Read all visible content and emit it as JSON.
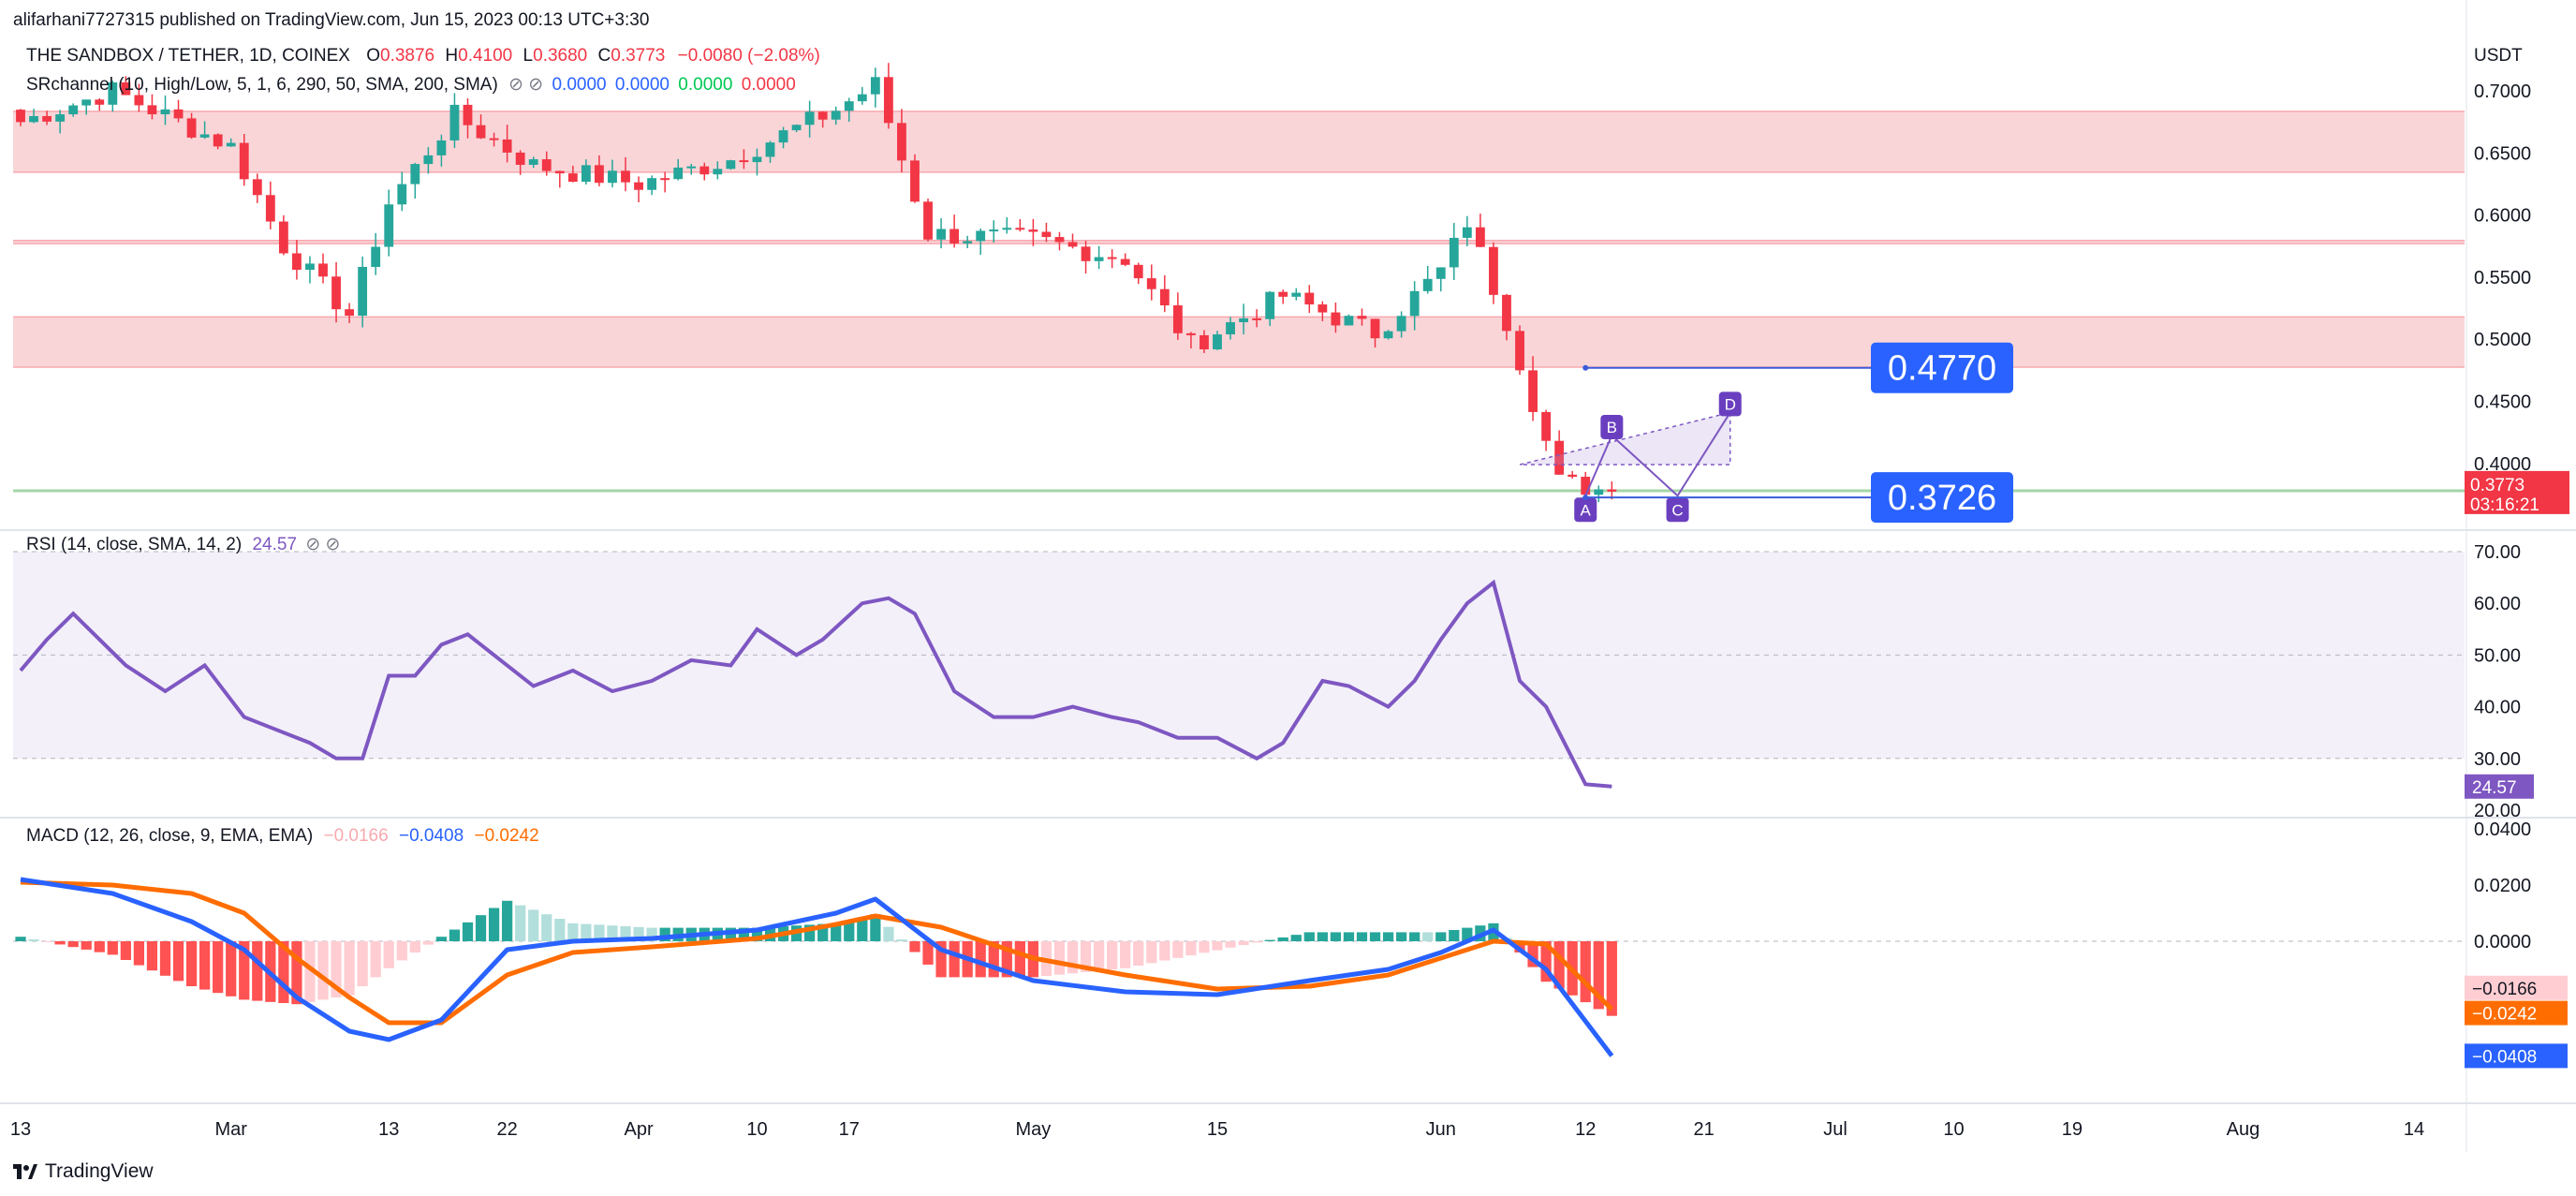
{
  "publisher_line": "alifarhani7727315 published on TradingView.com, Jun 15, 2023 00:13 UTC+3:30",
  "brand": "TradingView",
  "price_pane": {
    "symbol": "THE SANDBOX / TETHER, 1D, COINEX",
    "ohlc": {
      "o_label": "O",
      "o": "0.3876",
      "h_label": "H",
      "h": "0.4100",
      "l_label": "L",
      "l": "0.3680",
      "c_label": "C",
      "c": "0.3773",
      "change": "−0.0080 (−2.08%)"
    },
    "indicator": "SRchannel (10, High/Low, 5, 1, 6, 290, 50, SMA, 200, SMA)",
    "indicator_values": [
      "0.0000",
      "0.0000",
      "0.0000",
      "0.0000"
    ],
    "currency": "USDT",
    "last_price": "0.3773",
    "countdown": "03:16:21",
    "callout_high": "0.4770",
    "callout_low": "0.3726",
    "pattern_labels": [
      "A",
      "B",
      "C",
      "D"
    ]
  },
  "rsi_pane": {
    "label": "RSI (14, close, SMA, 14, 2)",
    "value": "24.57"
  },
  "macd_pane": {
    "label": "MACD (12, 26, close, 9, EMA, EMA)",
    "hist": "−0.0166",
    "macd": "−0.0408",
    "signal": "−0.0242"
  },
  "colors": {
    "up": "#26a69a",
    "down": "#f23645",
    "rsi": "#7e57c2",
    "macd": "#2962ff",
    "signal": "#ff6d00",
    "zone": "#f7c7cb",
    "callout": "#2962ff"
  },
  "chart_data": [
    {
      "type": "candlestick",
      "title": "THE SANDBOX / TETHER, 1D, COINEX",
      "ylabel": "USDT",
      "ylim": [
        0.36,
        0.72
      ],
      "y_ticks": [
        "0.7000",
        "0.6500",
        "0.6000",
        "0.5500",
        "0.5000",
        "0.4500",
        "0.4000"
      ],
      "x_ticks": [
        "13",
        "Mar",
        "13",
        "22",
        "Apr",
        "10",
        "17",
        "May",
        "15",
        "Jun",
        "12",
        "21",
        "Jul",
        "10",
        "19",
        "Aug",
        "14"
      ],
      "x_range": [
        "2023-02-13",
        "2023-08-20"
      ],
      "close_path": {
        "dates": [
          "2023-02-13",
          "2023-02-20",
          "2023-03-01",
          "2023-03-05",
          "2023-03-10",
          "2023-03-13",
          "2023-03-18",
          "2023-03-24",
          "2023-04-01",
          "2023-04-08",
          "2023-04-16",
          "2023-04-19",
          "2023-04-23",
          "2023-05-01",
          "2023-05-08",
          "2023-05-13",
          "2023-05-20",
          "2023-05-27",
          "2023-06-01",
          "2023-06-03",
          "2023-06-06",
          "2023-06-10",
          "2023-06-14"
        ],
        "values": [
          0.675,
          0.7,
          0.655,
          0.575,
          0.52,
          0.61,
          0.68,
          0.64,
          0.625,
          0.645,
          0.685,
          0.705,
          0.585,
          0.58,
          0.565,
          0.495,
          0.535,
          0.505,
          0.555,
          0.595,
          0.515,
          0.385,
          0.3773
        ]
      },
      "zones": [
        {
          "from": 0.6345,
          "to": 0.6835
        },
        {
          "from": 0.577,
          "to": 0.5795
        },
        {
          "from": 0.4775,
          "to": 0.518
        }
      ],
      "support_line": 0.378,
      "callouts": [
        {
          "label": "0.4770",
          "value": 0.477
        },
        {
          "label": "0.3726",
          "value": 0.3726
        }
      ],
      "pattern_points": {
        "A": [
          "2023-06-12",
          0.374
        ],
        "B": [
          "2023-06-14",
          0.4225
        ],
        "C": [
          "2023-06-19",
          0.374
        ],
        "D": [
          "2023-06-23",
          0.441
        ]
      }
    },
    {
      "type": "line",
      "title": "RSI (14, close, SMA, 14, 2)",
      "ylim": [
        20,
        70
      ],
      "y_ticks": [
        "70.00",
        "60.00",
        "50.00",
        "40.00",
        "30.00",
        "20.00"
      ],
      "x": [
        "2023-02-13",
        "2023-02-15",
        "2023-02-17",
        "2023-02-19",
        "2023-02-21",
        "2023-02-24",
        "2023-02-27",
        "2023-03-02",
        "2023-03-04",
        "2023-03-07",
        "2023-03-09",
        "2023-03-11",
        "2023-03-13",
        "2023-03-15",
        "2023-03-17",
        "2023-03-19",
        "2023-03-21",
        "2023-03-24",
        "2023-03-27",
        "2023-03-30",
        "2023-04-02",
        "2023-04-05",
        "2023-04-08",
        "2023-04-10",
        "2023-04-13",
        "2023-04-15",
        "2023-04-18",
        "2023-04-20",
        "2023-04-22",
        "2023-04-25",
        "2023-04-28",
        "2023-05-01",
        "2023-05-04",
        "2023-05-07",
        "2023-05-09",
        "2023-05-12",
        "2023-05-15",
        "2023-05-18",
        "2023-05-20",
        "2023-05-23",
        "2023-05-25",
        "2023-05-28",
        "2023-05-30",
        "2023-06-01",
        "2023-06-03",
        "2023-06-05",
        "2023-06-07",
        "2023-06-09",
        "2023-06-10",
        "2023-06-12",
        "2023-06-14"
      ],
      "values": [
        47,
        53,
        58,
        53,
        48,
        43,
        48,
        38,
        36,
        33,
        30,
        30,
        46,
        46,
        52,
        54,
        50,
        44,
        47,
        43,
        45,
        49,
        48,
        55,
        50,
        53,
        60,
        61,
        58,
        43,
        38,
        38,
        40,
        38,
        37,
        34,
        34,
        30,
        33,
        45,
        44,
        40,
        45,
        53,
        60,
        64,
        45,
        40,
        35,
        25,
        24.57
      ]
    },
    {
      "type": "line",
      "title": "MACD (12, 26, close, 9, EMA, EMA)",
      "ylim": [
        -0.05,
        0.04
      ],
      "y_ticks": [
        "0.0400",
        "0.0200",
        "0.0000"
      ],
      "x": [
        "2023-02-13",
        "2023-02-20",
        "2023-02-26",
        "2023-03-02",
        "2023-03-06",
        "2023-03-10",
        "2023-03-13",
        "2023-03-17",
        "2023-03-22",
        "2023-03-27",
        "2023-04-02",
        "2023-04-10",
        "2023-04-16",
        "2023-04-19",
        "2023-04-24",
        "2023-05-01",
        "2023-05-08",
        "2023-05-15",
        "2023-05-22",
        "2023-05-28",
        "2023-06-01",
        "2023-06-05",
        "2023-06-09",
        "2023-06-14"
      ],
      "series": [
        {
          "values": [
            0.022,
            0.017,
            0.007,
            -0.003,
            -0.02,
            -0.032,
            -0.035,
            -0.028,
            -0.003,
            0.0,
            0.001,
            0.004,
            0.01,
            0.015,
            -0.003,
            -0.014,
            -0.018,
            -0.019,
            -0.014,
            -0.01,
            -0.004,
            0.004,
            -0.01,
            -0.0408
          ]
        },
        {
          "values": [
            0.021,
            0.02,
            0.017,
            0.01,
            -0.006,
            -0.02,
            -0.029,
            -0.029,
            -0.012,
            -0.004,
            -0.002,
            0.001,
            0.006,
            0.009,
            0.005,
            -0.006,
            -0.012,
            -0.017,
            -0.016,
            -0.012,
            -0.006,
            0.0,
            -0.001,
            -0.0242
          ]
        }
      ]
    }
  ]
}
